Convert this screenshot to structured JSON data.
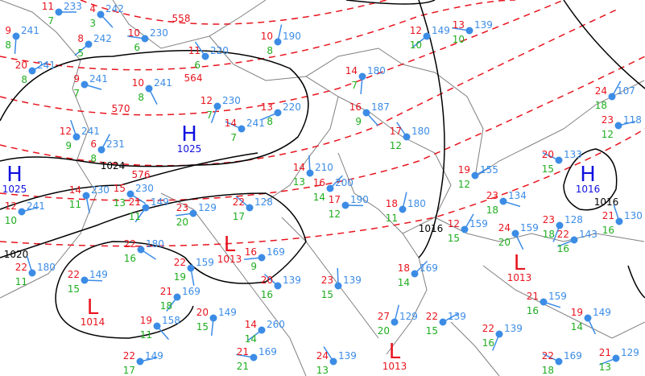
{
  "map": {
    "colors": {
      "temperature": "#e8141e",
      "dewpoint": "#1fae1f",
      "pressure": "#3c8ce6",
      "isobar": "#000000",
      "thickness": "#e8141e",
      "border": "#808080",
      "high": "#1010e0",
      "low": "#e8141e"
    },
    "pressure_systems": [
      {
        "type": "H",
        "value": "1025"
      },
      {
        "type": "H",
        "value": "1025"
      },
      {
        "type": "H",
        "value": "1016"
      },
      {
        "type": "L",
        "value": "1013"
      },
      {
        "type": "L",
        "value": "1014"
      },
      {
        "type": "L",
        "value": "1013"
      },
      {
        "type": "L",
        "value": "1013"
      }
    ],
    "isobar_labels": [
      "1024",
      "1020",
      "1016",
      "1016"
    ],
    "thickness_labels": [
      "558",
      "564",
      "570",
      "576"
    ],
    "stations": [
      {
        "t": "11",
        "d": "7",
        "p": "233"
      },
      {
        "t": "4",
        "d": "3",
        "p": "242"
      },
      {
        "t": "9",
        "d": "8",
        "p": "241"
      },
      {
        "t": "8",
        "d": "5",
        "p": "242"
      },
      {
        "t": "10",
        "d": "6",
        "p": "230"
      },
      {
        "t": "11",
        "d": "6",
        "p": "220"
      },
      {
        "t": "10",
        "d": "8",
        "p": "190"
      },
      {
        "t": "20",
        "d": "8",
        "p": "241"
      },
      {
        "t": "9",
        "d": "7",
        "p": "241"
      },
      {
        "t": "10",
        "d": "8",
        "p": "241"
      },
      {
        "t": "12",
        "d": "7",
        "p": "230"
      },
      {
        "t": "13",
        "d": "8",
        "p": "220"
      },
      {
        "t": "14",
        "d": "7",
        "p": "241"
      },
      {
        "t": "12",
        "d": "9",
        "p": "241"
      },
      {
        "t": "6",
        "d": "8",
        "p": "231"
      },
      {
        "t": "12",
        "d": "10",
        "p": "241"
      },
      {
        "t": "15",
        "d": "13",
        "p": "230"
      },
      {
        "t": "14",
        "d": "11",
        "p": "230"
      },
      {
        "t": "21",
        "d": "11",
        "p": "149"
      },
      {
        "t": "23",
        "d": "20",
        "p": "129"
      },
      {
        "t": "22",
        "d": "17",
        "p": "128"
      },
      {
        "t": "14",
        "d": "13",
        "p": "210"
      },
      {
        "t": "16",
        "d": "14",
        "p": "200"
      },
      {
        "t": "17",
        "d": "12",
        "p": "190"
      },
      {
        "t": "16",
        "d": "9",
        "p": "187"
      },
      {
        "t": "14",
        "d": "7",
        "p": "180"
      },
      {
        "t": "12",
        "d": "10",
        "p": "149"
      },
      {
        "t": "13",
        "d": "10",
        "p": "139"
      },
      {
        "t": "17",
        "d": "12",
        "p": "180"
      },
      {
        "t": "18",
        "d": "11",
        "p": "180"
      },
      {
        "t": "19",
        "d": "12",
        "p": "155"
      },
      {
        "t": "23",
        "d": "18",
        "p": "134"
      },
      {
        "t": "24",
        "d": "20",
        "p": "159"
      },
      {
        "t": "23",
        "d": "18",
        "p": "128"
      },
      {
        "t": "22",
        "d": "16",
        "p": "143"
      },
      {
        "t": "20",
        "d": "15",
        "p": "133"
      },
      {
        "t": "21",
        "d": "16",
        "p": "130"
      },
      {
        "t": "24",
        "d": "18",
        "p": "107"
      },
      {
        "t": "23",
        "d": "12",
        "p": "118"
      },
      {
        "t": "22",
        "d": "16",
        "p": "180"
      },
      {
        "t": "22",
        "d": "19",
        "p": "159"
      },
      {
        "t": "21",
        "d": "18",
        "p": "169"
      },
      {
        "t": "16",
        "d": "9",
        "p": "169"
      },
      {
        "t": "20",
        "d": "16",
        "p": "139"
      },
      {
        "t": "23",
        "d": "15",
        "p": "139"
      },
      {
        "t": "18",
        "d": "14",
        "p": "169"
      },
      {
        "t": "22",
        "d": "15",
        "p": "149"
      },
      {
        "t": "19",
        "d": "11",
        "p": "158"
      },
      {
        "t": "20",
        "d": "15",
        "p": "149"
      },
      {
        "t": "14",
        "d": "14",
        "p": "260"
      },
      {
        "t": "21",
        "d": "21",
        "p": "169"
      },
      {
        "t": "24",
        "d": "13",
        "p": "139"
      },
      {
        "t": "27",
        "d": "20",
        "p": "129"
      },
      {
        "t": "22",
        "d": "15",
        "p": "139"
      },
      {
        "t": "21",
        "d": "16",
        "p": "159"
      },
      {
        "t": "19",
        "d": "14",
        "p": "149"
      },
      {
        "t": "22",
        "d": "16",
        "p": "139"
      },
      {
        "t": "21",
        "d": "13",
        "p": "129"
      },
      {
        "t": "22",
        "d": "18",
        "p": "169"
      },
      {
        "t": "22",
        "d": "11",
        "p": "180"
      },
      {
        "t": "12",
        "d": "15",
        "p": "159"
      },
      {
        "t": "22",
        "d": "17",
        "p": "149"
      }
    ]
  }
}
